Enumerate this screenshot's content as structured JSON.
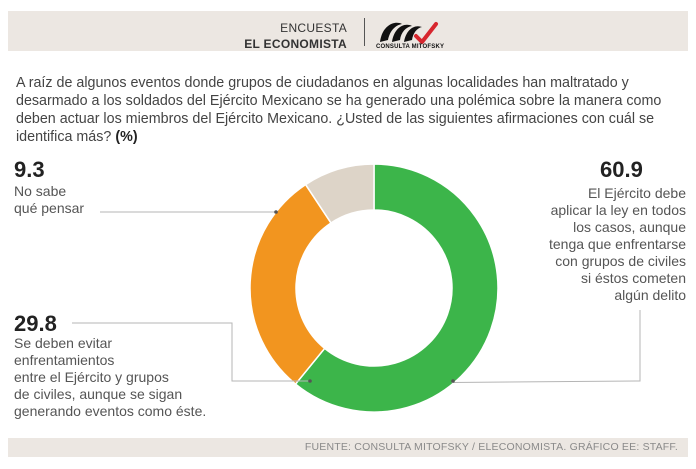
{
  "header": {
    "line1": "ENCUESTA",
    "line2": "EL ECONOMISTA",
    "logo_text": "CONSULTA MITOFSKY"
  },
  "question": {
    "text": "A raíz de algunos eventos donde grupos de ciudadanos en algunas localidades han maltratado y desarmado a los soldados del Ejército Mexicano se ha generado una polémica sobre la manera como deben actuar los miembros del Ejército Mexicano. ¿Usted de las siguientes afirmaciones con cuál se identifica más?",
    "unit": "(%)"
  },
  "chart_data": {
    "type": "pie",
    "donut": true,
    "unit": "%",
    "slices": [
      {
        "value": 60.9,
        "value_text": "60.9",
        "label_lines": [
          "El Ejército debe",
          "aplicar la ley en todos",
          "los casos, aunque",
          "tenga que enfrentarse",
          "con grupos de civiles",
          "si éstos cometen",
          "algún delito"
        ],
        "color": "#3cb54a"
      },
      {
        "value": 29.8,
        "value_text": "29.8",
        "label_lines": [
          "Se deben evitar",
          "enfrentamientos",
          "entre el Ejército y grupos",
          "de civiles, aunque se sigan",
          "generando eventos como éste."
        ],
        "color": "#f2951f"
      },
      {
        "value": 9.3,
        "value_text": "9.3",
        "label_lines": [
          "No sabe",
          "qué pensar"
        ],
        "color": "#ddd4c8"
      }
    ]
  },
  "footer": {
    "source": "FUENTE: CONSULTA MITOFSKY / ELECONOMISTA. GRÁFICO EE: STAFF."
  },
  "colors": {
    "band": "#ece7e2",
    "logo_red": "#d7262e",
    "leader_line": "#b5b5b5"
  }
}
